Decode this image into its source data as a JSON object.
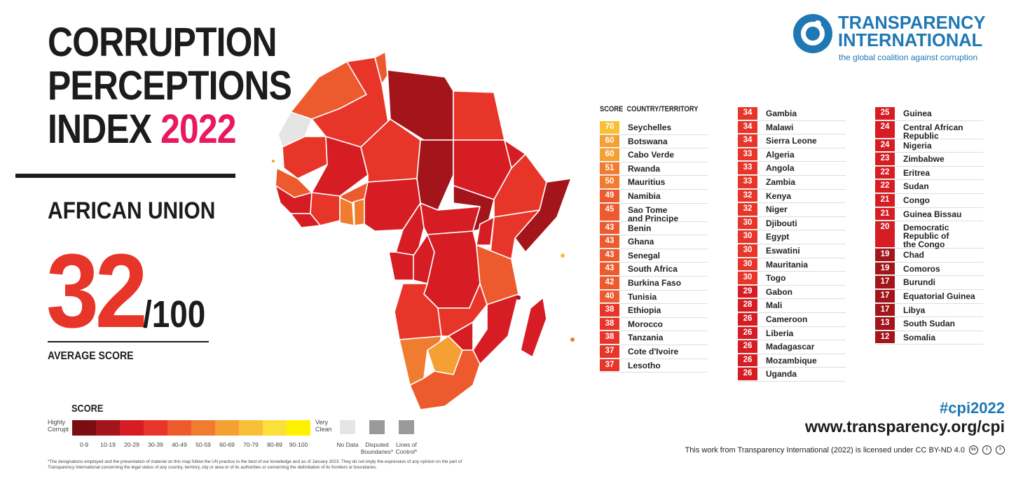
{
  "header": {
    "title_line1": "CORRUPTION",
    "title_line2": "PERCEPTIONS",
    "title_line3_prefix": "INDEX",
    "title_year": "2022",
    "region": "AFRICAN UNION",
    "score": "32",
    "score_suffix": "/100",
    "score_label": "AVERAGE SCORE"
  },
  "org": {
    "name_line1": "TRANSPARENCY",
    "name_line2": "INTERNATIONAL",
    "tagline": "the global coalition against corruption",
    "brand_color": "#1f78b4"
  },
  "legend": {
    "title": "SCORE",
    "left_label": "Highly\nCorrupt",
    "right_label": "Very\nClean",
    "ranges": [
      "0-9",
      "10-19",
      "20-29",
      "30-39",
      "40-49",
      "50-59",
      "60-69",
      "70-79",
      "80-89",
      "90-100"
    ],
    "colors": [
      "#7a0d12",
      "#a3141b",
      "#d61d24",
      "#e8352a",
      "#ec5a2d",
      "#f07d2f",
      "#f4a033",
      "#f8c036",
      "#fce03a",
      "#fff200"
    ],
    "extras": [
      {
        "label": "No Data",
        "color": "#e5e5e5"
      },
      {
        "label": "Disputed\nBoundaries*",
        "color": "#9a9a9a"
      },
      {
        "label": "Lines of\nControl*",
        "color": "#9a9a9a"
      }
    ],
    "footnote": "*The designations employed and the presentation of material on this map follow the UN practice to the best of our knowledge and as of January 2023. They do not imply the expression of any opinion on the part of Transparency International concerning the legal status of any country, territory, city or area or of its authorities or concerning the delimitation of its frontiers or boundaries."
  },
  "footer": {
    "hashtag": "#cpi2022",
    "url": "www.transparency.org/cpi",
    "license": "This work from Transparency International (2022) is licensed under CC BY-ND 4.0"
  },
  "chart_data": {
    "type": "table",
    "columns": [
      "SCORE",
      "COUNTRY/TERRITORY"
    ],
    "rows": [
      {
        "score": 70,
        "country": "Seychelles"
      },
      {
        "score": 60,
        "country": "Botswana"
      },
      {
        "score": 60,
        "country": "Cabo Verde"
      },
      {
        "score": 51,
        "country": "Rwanda"
      },
      {
        "score": 50,
        "country": "Mauritius"
      },
      {
        "score": 49,
        "country": "Namibia"
      },
      {
        "score": 45,
        "country": "Sao Tome\nand Principe"
      },
      {
        "score": 43,
        "country": "Benin"
      },
      {
        "score": 43,
        "country": "Ghana"
      },
      {
        "score": 43,
        "country": "Senegal"
      },
      {
        "score": 43,
        "country": "South Africa"
      },
      {
        "score": 42,
        "country": "Burkina Faso"
      },
      {
        "score": 40,
        "country": "Tunisia"
      },
      {
        "score": 38,
        "country": "Ethiopia"
      },
      {
        "score": 38,
        "country": "Morocco"
      },
      {
        "score": 38,
        "country": "Tanzania"
      },
      {
        "score": 37,
        "country": "Cote d'Ivoire"
      },
      {
        "score": 37,
        "country": "Lesotho"
      },
      {
        "score": 34,
        "country": "Gambia"
      },
      {
        "score": 34,
        "country": "Malawi"
      },
      {
        "score": 34,
        "country": "Sierra Leone"
      },
      {
        "score": 33,
        "country": "Algeria"
      },
      {
        "score": 33,
        "country": "Angola"
      },
      {
        "score": 33,
        "country": "Zambia"
      },
      {
        "score": 32,
        "country": "Kenya"
      },
      {
        "score": 32,
        "country": "Niger"
      },
      {
        "score": 30,
        "country": "Djibouti"
      },
      {
        "score": 30,
        "country": "Egypt"
      },
      {
        "score": 30,
        "country": "Eswatini"
      },
      {
        "score": 30,
        "country": "Mauritania"
      },
      {
        "score": 30,
        "country": "Togo"
      },
      {
        "score": 29,
        "country": "Gabon"
      },
      {
        "score": 28,
        "country": "Mali"
      },
      {
        "score": 26,
        "country": "Cameroon"
      },
      {
        "score": 26,
        "country": "Liberia"
      },
      {
        "score": 26,
        "country": "Madagascar"
      },
      {
        "score": 26,
        "country": "Mozambique"
      },
      {
        "score": 26,
        "country": "Uganda"
      },
      {
        "score": 25,
        "country": "Guinea"
      },
      {
        "score": 24,
        "country": "Central African\nRepublic"
      },
      {
        "score": 24,
        "country": "Nigeria"
      },
      {
        "score": 23,
        "country": "Zimbabwe"
      },
      {
        "score": 22,
        "country": "Eritrea"
      },
      {
        "score": 22,
        "country": "Sudan"
      },
      {
        "score": 21,
        "country": "Congo"
      },
      {
        "score": 21,
        "country": "Guinea Bissau"
      },
      {
        "score": 20,
        "country": "Democratic\nRepublic of\nthe Congo"
      },
      {
        "score": 19,
        "country": "Chad"
      },
      {
        "score": 19,
        "country": "Comoros"
      },
      {
        "score": 17,
        "country": "Burundi"
      },
      {
        "score": 17,
        "country": "Equatorial Guinea"
      },
      {
        "score": 17,
        "country": "Libya"
      },
      {
        "score": 13,
        "country": "South Sudan"
      },
      {
        "score": 12,
        "country": "Somalia"
      }
    ]
  }
}
